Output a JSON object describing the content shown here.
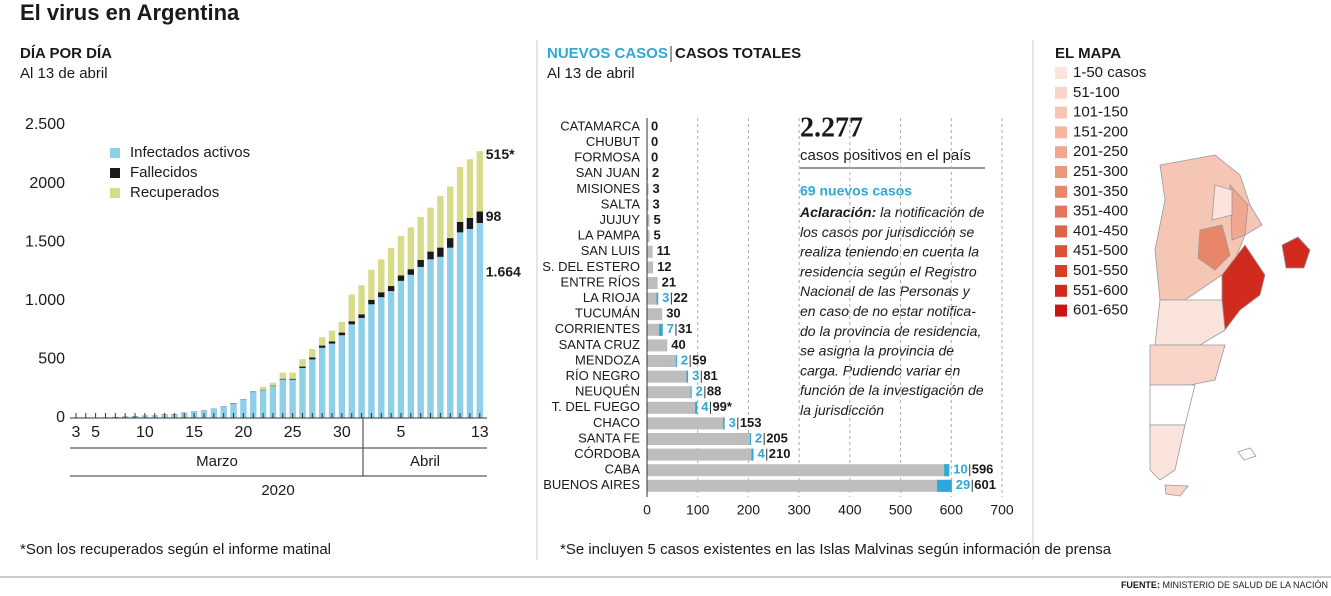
{
  "title": "El virus en Argentina",
  "chart_data": [
    {
      "type": "bar",
      "stacked": true,
      "title": "DÍA POR DÍA",
      "subtitle": "Al 13 de abril",
      "categories": [
        "3",
        null,
        "5",
        null,
        null,
        null,
        null,
        "10",
        null,
        null,
        null,
        null,
        "15",
        null,
        null,
        null,
        null,
        "20",
        null,
        null,
        null,
        null,
        "25",
        null,
        null,
        null,
        null,
        "30",
        null,
        null,
        null,
        null,
        null,
        "5",
        null,
        null,
        null,
        null,
        null,
        null,
        null,
        "13"
      ],
      "months": [
        "Marzo",
        "Abril"
      ],
      "year": "2020",
      "series": [
        {
          "name": "Infectados activos",
          "color": "#8ecfea",
          "values": [
            1,
            1,
            2,
            8,
            8,
            10,
            15,
            17,
            19,
            29,
            32,
            43,
            54,
            63,
            77,
            94,
            125,
            155,
            221,
            237,
            272,
            329,
            327,
            427,
            500,
            599,
            635,
            706,
            799,
            854,
            970,
            1031,
            1083,
            1170,
            1222,
            1289,
            1354,
            1375,
            1453,
            1584,
            1613,
            1664
          ],
          "value_labels": [
            null,
            null,
            null,
            null,
            null,
            null,
            null,
            null,
            null,
            null,
            null,
            null,
            null,
            null,
            null,
            null,
            null,
            null,
            null,
            null,
            null,
            null,
            null,
            null,
            null,
            null,
            null,
            null,
            null,
            null,
            null,
            null,
            null,
            null,
            null,
            null,
            null,
            null,
            null,
            null,
            null,
            "1.664"
          ]
        },
        {
          "name": "Fallecidos",
          "color": "#1a1a1a",
          "values": [
            0,
            0,
            0,
            0,
            1,
            2,
            2,
            2,
            2,
            2,
            2,
            2,
            2,
            2,
            2,
            3,
            3,
            3,
            4,
            4,
            4,
            6,
            8,
            12,
            17,
            19,
            19,
            23,
            27,
            31,
            39,
            42,
            43,
            46,
            48,
            60,
            66,
            79,
            82,
            90,
            95,
            98
          ],
          "value_labels": [
            null,
            null,
            null,
            null,
            null,
            null,
            null,
            null,
            null,
            null,
            null,
            null,
            null,
            null,
            null,
            null,
            null,
            null,
            null,
            null,
            null,
            null,
            null,
            null,
            null,
            null,
            null,
            null,
            null,
            null,
            null,
            null,
            null,
            null,
            null,
            null,
            null,
            null,
            null,
            null,
            null,
            "98"
          ]
        },
        {
          "name": "Recuperados",
          "color": "#d8dc8a",
          "values": [
            0,
            0,
            0,
            0,
            0,
            0,
            0,
            0,
            0,
            0,
            0,
            0,
            0,
            0,
            0,
            0,
            0,
            0,
            0,
            25,
            25,
            52,
            52,
            63,
            72,
            72,
            91,
            91,
            228,
            248,
            256,
            280,
            325,
            338,
            358,
            366,
            375,
            440,
            440,
            468,
            500,
            515
          ],
          "value_labels": [
            null,
            null,
            null,
            null,
            null,
            null,
            null,
            null,
            null,
            null,
            null,
            null,
            null,
            null,
            null,
            null,
            null,
            null,
            null,
            null,
            null,
            null,
            null,
            null,
            null,
            null,
            null,
            null,
            null,
            null,
            null,
            null,
            null,
            null,
            null,
            null,
            null,
            null,
            null,
            null,
            null,
            "515*"
          ]
        }
      ],
      "ylim": [
        0,
        2500
      ],
      "yticks": [
        0,
        500,
        {
          "value": 1000,
          "label": "1.000"
        },
        {
          "value": 1500,
          "label": "1.500"
        },
        2000,
        {
          "value": 2500,
          "label": "2.500"
        }
      ],
      "legend": "upper-left",
      "footnote": "*Son los recuperados según el informe matinal"
    },
    {
      "type": "bar",
      "horizontal": true,
      "subtitle": "Al 13 de abril",
      "categories": [
        "CATAMARCA",
        "CHUBUT",
        "FORMOSA",
        "SAN JUAN",
        "MISIONES",
        "SALTA",
        "JUJUY",
        "LA PAMPA",
        "SAN LUIS",
        "S. DEL ESTERO",
        "ENTRE RÍOS",
        "LA RIOJA",
        "TUCUMÁN",
        "CORRIENTES",
        "SANTA CRUZ",
        "MENDOZA",
        "RÍO NEGRO",
        "NEUQUÉN",
        "T. DEL FUEGO",
        "CHACO",
        "SANTA FE",
        "CÓRDOBA",
        "CABA",
        "BUENOS AIRES"
      ],
      "series": [
        {
          "name": "NUEVOS CASOS",
          "color": "#2ea8d8",
          "values": [
            null,
            null,
            null,
            null,
            null,
            null,
            null,
            null,
            null,
            null,
            null,
            3,
            null,
            7,
            null,
            2,
            3,
            2,
            4,
            3,
            2,
            4,
            10,
            29
          ]
        },
        {
          "name": "CASOS TOTALES",
          "color": "#bdbdbd",
          "values": [
            0,
            0,
            0,
            2,
            3,
            3,
            5,
            5,
            11,
            12,
            21,
            22,
            30,
            31,
            40,
            59,
            81,
            88,
            99,
            153,
            205,
            210,
            596,
            601
          ],
          "value_labels": [
            null,
            null,
            null,
            null,
            null,
            null,
            null,
            null,
            null,
            null,
            null,
            null,
            null,
            null,
            null,
            null,
            null,
            null,
            "99*",
            null,
            null,
            null,
            null,
            null
          ]
        }
      ],
      "xlim": [
        0,
        700
      ],
      "xticks": [
        0,
        100,
        200,
        300,
        400,
        500,
        600,
        700
      ],
      "grid": true,
      "headline": {
        "value": "2.277",
        "text": "casos positivos en el país",
        "new": "69 nuevos casos",
        "note_label": "Aclaración:",
        "note_lines": [
          "la notificación de",
          "los casos por jurisdicción se",
          "realiza teniendo en cuenta la",
          "residencia según el Registro",
          "Nacional de las Personas y",
          "en caso de no estar notifica-",
          "do la provincia de residencia,",
          "se asigna la provincia de",
          "carga. Pudiendo variar en",
          "función de la investigación de",
          "la jurisdicción"
        ]
      },
      "footnote": "*Se incluyen 5 casos existentes en las Islas Malvinas según información de prensa"
    }
  ],
  "map": {
    "title": "EL MAPA",
    "legend": [
      {
        "label": "1-50 casos",
        "color": "#fbe4dc"
      },
      {
        "label": "51-100",
        "color": "#f9d5c9"
      },
      {
        "label": "101-150",
        "color": "#f6c6b5"
      },
      {
        "label": "151-200",
        "color": "#f3b6a2"
      },
      {
        "label": "201-250",
        "color": "#f0a68f"
      },
      {
        "label": "251-300",
        "color": "#ec967c"
      },
      {
        "label": "301-350",
        "color": "#e8866a"
      },
      {
        "label": "351-400",
        "color": "#e47558"
      },
      {
        "label": "401-450",
        "color": "#e06447"
      },
      {
        "label": "451-500",
        "color": "#db5237"
      },
      {
        "label": "501-550",
        "color": "#d63f29"
      },
      {
        "label": "551-600",
        "color": "#d12b1d"
      },
      {
        "label": "601-650",
        "color": "#cc1414"
      }
    ]
  },
  "source": {
    "label": "FUENTE:",
    "text": "MINISTERIO DE SALUD DE LA NACIÓN"
  }
}
